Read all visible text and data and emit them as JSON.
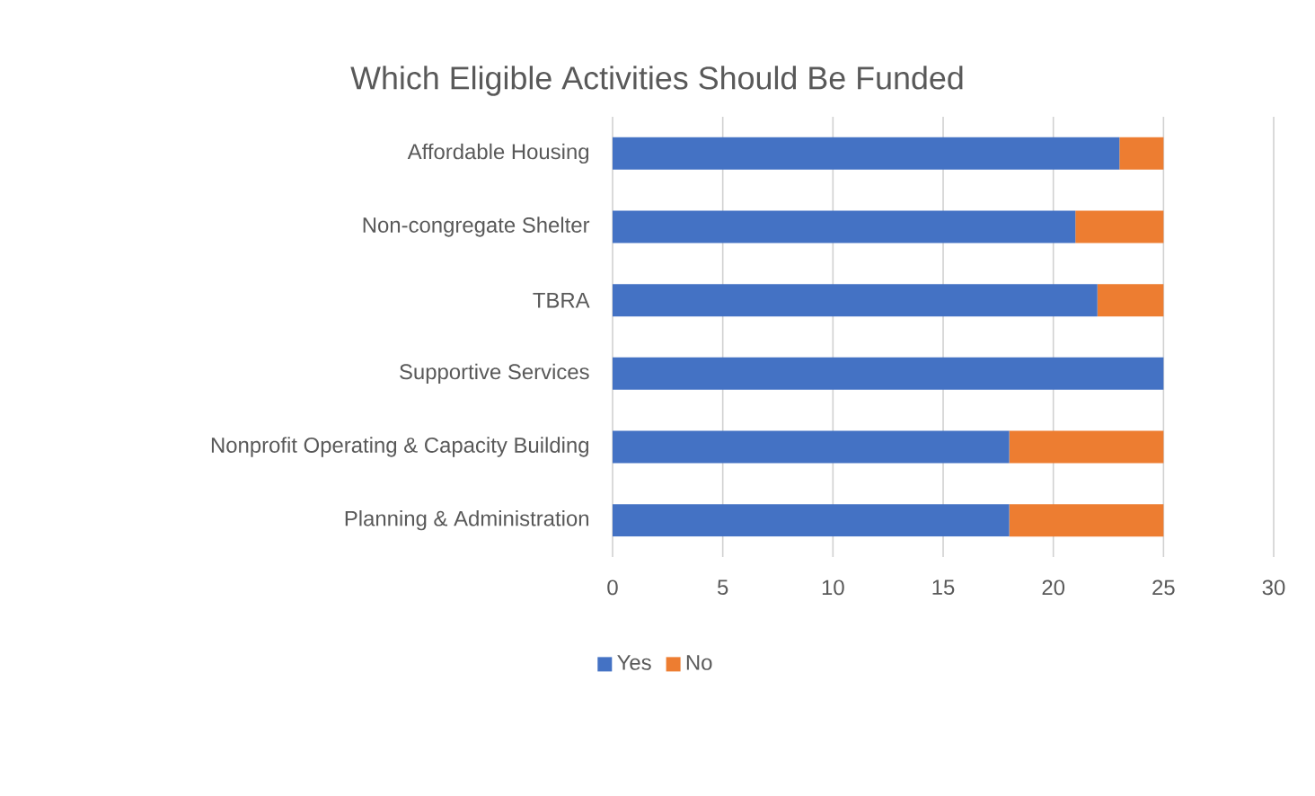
{
  "chart_data": {
    "type": "bar",
    "orientation": "horizontal",
    "stacked": true,
    "title": "Which Eligible Activities Should Be Funded",
    "categories": [
      "Affordable Housing",
      "Non-congregate Shelter",
      "TBRA",
      "Supportive Services",
      "Nonprofit Operating & Capacity Building",
      "Planning & Administration"
    ],
    "series": [
      {
        "name": "Yes",
        "color": "#4472c4",
        "values": [
          23,
          21,
          22,
          25,
          18,
          18
        ]
      },
      {
        "name": "No",
        "color": "#ed7d31",
        "values": [
          2,
          4,
          3,
          0,
          7,
          7
        ]
      }
    ],
    "xlim": [
      0,
      30
    ],
    "xticks": [
      0,
      5,
      10,
      15,
      20,
      25,
      30
    ],
    "grid": "x",
    "legend": "bottom"
  }
}
